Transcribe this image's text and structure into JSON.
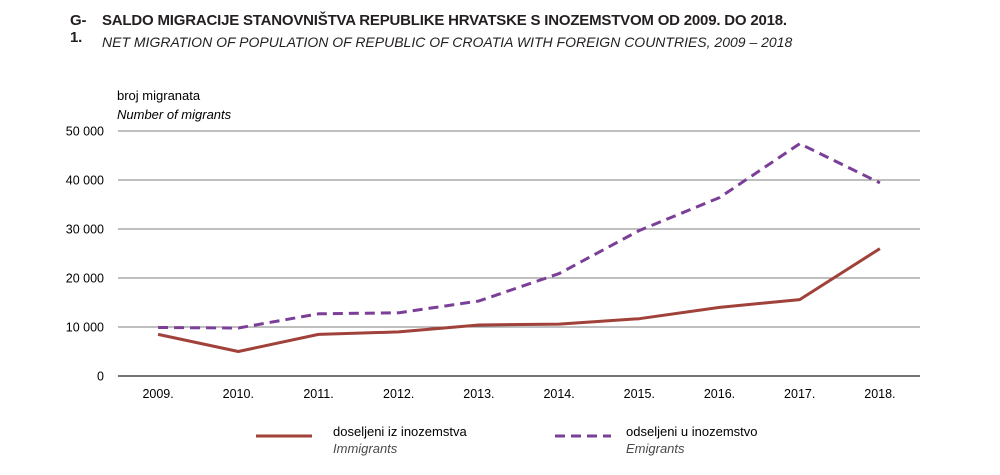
{
  "figure": {
    "number": "G-1.",
    "title": "SALDO MIGRACIJE STANOVNIŠTVA REPUBLIKE HRVATSKE S INOZEMSTVOM OD 2009. DO 2018.",
    "subtitle": "NET MIGRATION OF POPULATION OF REPUBLIC OF CROATIA  WITH FOREIGN COUNTRIES, 2009 – 2018"
  },
  "chart_data": {
    "type": "line",
    "title": "SALDO MIGRACIJE STANOVNIŠTVA REPUBLIKE HRVATSKE S INOZEMSTVOM OD 2009. DO 2018.",
    "subtitle": "NET MIGRATION OF POPULATION OF REPUBLIC OF CROATIA  WITH FOREIGN COUNTRIES, 2009 – 2018",
    "ylabel": "broj migranata",
    "ylabel_en": "Number of migrants",
    "xlabel": "",
    "categories": [
      "2009.",
      "2010.",
      "2011.",
      "2012.",
      "2013.",
      "2014.",
      "2015.",
      "2016.",
      "2017.",
      "2018."
    ],
    "ylim": [
      0,
      50000
    ],
    "yticks": [
      0,
      10000,
      20000,
      30000,
      40000,
      50000
    ],
    "ytick_labels": [
      "0",
      "10 000",
      "20 000",
      "30 000",
      "40 000",
      "50 000"
    ],
    "grid": "horizontal",
    "legend_position": "bottom",
    "series": [
      {
        "name": "doseljeni iz inozemstva",
        "name_en": "Immigrants",
        "color": "#a0413a",
        "style": "solid",
        "values": [
          8500,
          5000,
          8500,
          9000,
          10400,
          10600,
          11700,
          14000,
          15600,
          26000
        ]
      },
      {
        "name": "odseljeni u inozemstvo",
        "name_en": "Emigrants",
        "color": "#7b3f98",
        "style": "dashed",
        "values": [
          9900,
          9800,
          12700,
          12900,
          15300,
          20900,
          29700,
          36400,
          47400,
          39400
        ]
      }
    ]
  }
}
